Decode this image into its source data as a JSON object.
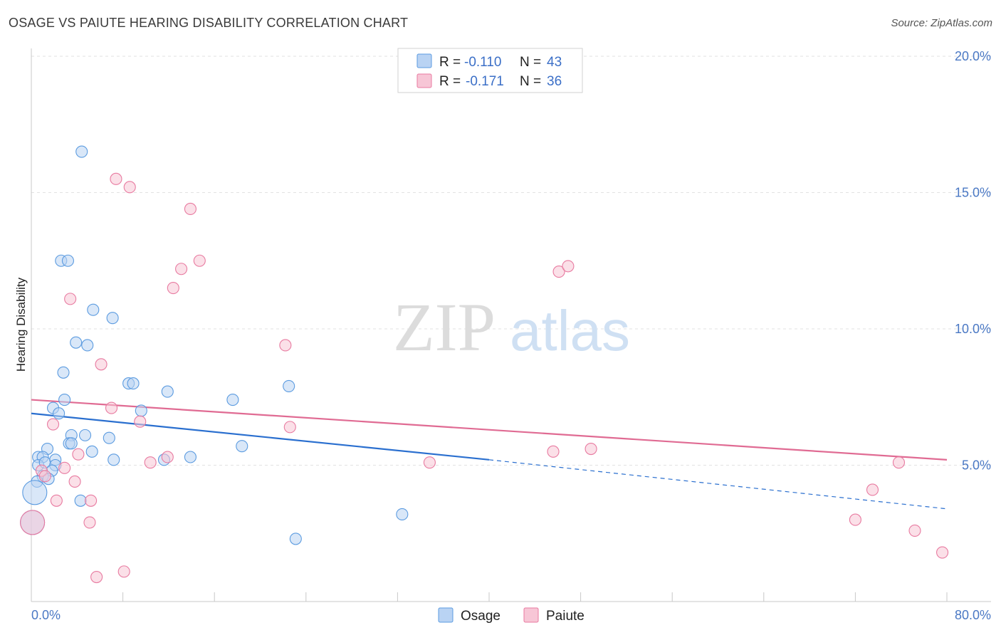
{
  "title": "OSAGE VS PAIUTE HEARING DISABILITY CORRELATION CHART",
  "source": "Source: ZipAtlas.com",
  "watermark": {
    "zip": "ZIP",
    "atlas": "atlas"
  },
  "colors": {
    "osage": "#5b9be0",
    "osage_fill": "#b9d3f3",
    "osage_line": "#2a6fcf",
    "paiute": "#e87aa0",
    "paiute_fill": "#f7c6d6",
    "paiute_line": "#e06b93",
    "tick": "#4a78c4"
  },
  "legend": {
    "rows": [
      {
        "r_label": "R =",
        "r_value": "-0.110",
        "n_label": "N =",
        "n_value": "43"
      },
      {
        "r_label": "R =",
        "r_value": "-0.171",
        "n_label": "N =",
        "n_value": "36"
      }
    ]
  },
  "bottom_legend": {
    "osage": "Osage",
    "paiute": "Paiute"
  },
  "chart_data": {
    "type": "scatter",
    "title": "OSAGE VS PAIUTE HEARING DISABILITY CORRELATION CHART",
    "ylabel": "Hearing Disability",
    "xlim": [
      0,
      80
    ],
    "ylim": [
      0,
      20
    ],
    "x_tick_labels": {
      "min": "0.0%",
      "max": "80.0%"
    },
    "y_ticks": [
      {
        "v": 5,
        "label": "5.0%"
      },
      {
        "v": 10,
        "label": "10.0%"
      },
      {
        "v": 15,
        "label": "15.0%"
      },
      {
        "v": 20,
        "label": "20.0%"
      }
    ],
    "grid": true,
    "legend_position": "top-center",
    "series": [
      {
        "name": "Osage",
        "points": [
          [
            4.4,
            16.5
          ],
          [
            2.6,
            12.5
          ],
          [
            3.2,
            12.5
          ],
          [
            5.4,
            10.7
          ],
          [
            7.1,
            10.4
          ],
          [
            3.9,
            9.5
          ],
          [
            4.9,
            9.4
          ],
          [
            2.8,
            8.4
          ],
          [
            8.5,
            8.0
          ],
          [
            8.9,
            8.0
          ],
          [
            11.9,
            7.7
          ],
          [
            22.5,
            7.9
          ],
          [
            17.6,
            7.4
          ],
          [
            2.9,
            7.4
          ],
          [
            1.9,
            7.1
          ],
          [
            2.4,
            6.9
          ],
          [
            9.6,
            7.0
          ],
          [
            3.5,
            6.1
          ],
          [
            4.7,
            6.1
          ],
          [
            6.8,
            6.0
          ],
          [
            3.3,
            5.8
          ],
          [
            3.5,
            5.8
          ],
          [
            1.4,
            5.6
          ],
          [
            5.3,
            5.5
          ],
          [
            18.4,
            5.7
          ],
          [
            0.6,
            5.3
          ],
          [
            1.0,
            5.3
          ],
          [
            0.6,
            5.0
          ],
          [
            1.2,
            5.1
          ],
          [
            2.1,
            5.2
          ],
          [
            2.1,
            5.0
          ],
          [
            7.2,
            5.2
          ],
          [
            11.6,
            5.2
          ],
          [
            13.9,
            5.3
          ],
          [
            1.8,
            4.8
          ],
          [
            1.0,
            4.6
          ],
          [
            1.5,
            4.5
          ],
          [
            0.5,
            4.4
          ],
          [
            0.3,
            4.0
          ],
          [
            4.3,
            3.7
          ],
          [
            32.4,
            3.2
          ],
          [
            23.1,
            2.3
          ],
          [
            0.1,
            2.9
          ]
        ],
        "trend": {
          "x0": 0,
          "y0": 6.9,
          "x1": 40,
          "y1": 5.2,
          "dash_to": [
            80,
            3.4
          ]
        }
      },
      {
        "name": "Paiute",
        "points": [
          [
            7.4,
            15.5
          ],
          [
            8.6,
            15.2
          ],
          [
            13.9,
            14.4
          ],
          [
            14.7,
            12.5
          ],
          [
            13.1,
            12.2
          ],
          [
            12.4,
            11.5
          ],
          [
            46.1,
            12.1
          ],
          [
            46.9,
            12.3
          ],
          [
            3.4,
            11.1
          ],
          [
            22.2,
            9.4
          ],
          [
            6.1,
            8.7
          ],
          [
            7.0,
            7.1
          ],
          [
            9.5,
            6.6
          ],
          [
            1.9,
            6.5
          ],
          [
            22.6,
            6.4
          ],
          [
            4.1,
            5.4
          ],
          [
            11.9,
            5.3
          ],
          [
            45.6,
            5.5
          ],
          [
            48.9,
            5.6
          ],
          [
            10.4,
            5.1
          ],
          [
            34.8,
            5.1
          ],
          [
            75.8,
            5.1
          ],
          [
            0.9,
            4.8
          ],
          [
            2.9,
            4.9
          ],
          [
            1.2,
            4.6
          ],
          [
            3.8,
            4.4
          ],
          [
            73.5,
            4.1
          ],
          [
            2.2,
            3.7
          ],
          [
            5.2,
            3.7
          ],
          [
            5.1,
            2.9
          ],
          [
            72.0,
            3.0
          ],
          [
            77.2,
            2.6
          ],
          [
            79.6,
            1.8
          ],
          [
            8.1,
            1.1
          ],
          [
            5.7,
            0.9
          ],
          [
            0.1,
            2.9
          ]
        ],
        "trend": {
          "x0": 0,
          "y0": 7.4,
          "x1": 80,
          "y1": 5.2
        }
      }
    ]
  }
}
